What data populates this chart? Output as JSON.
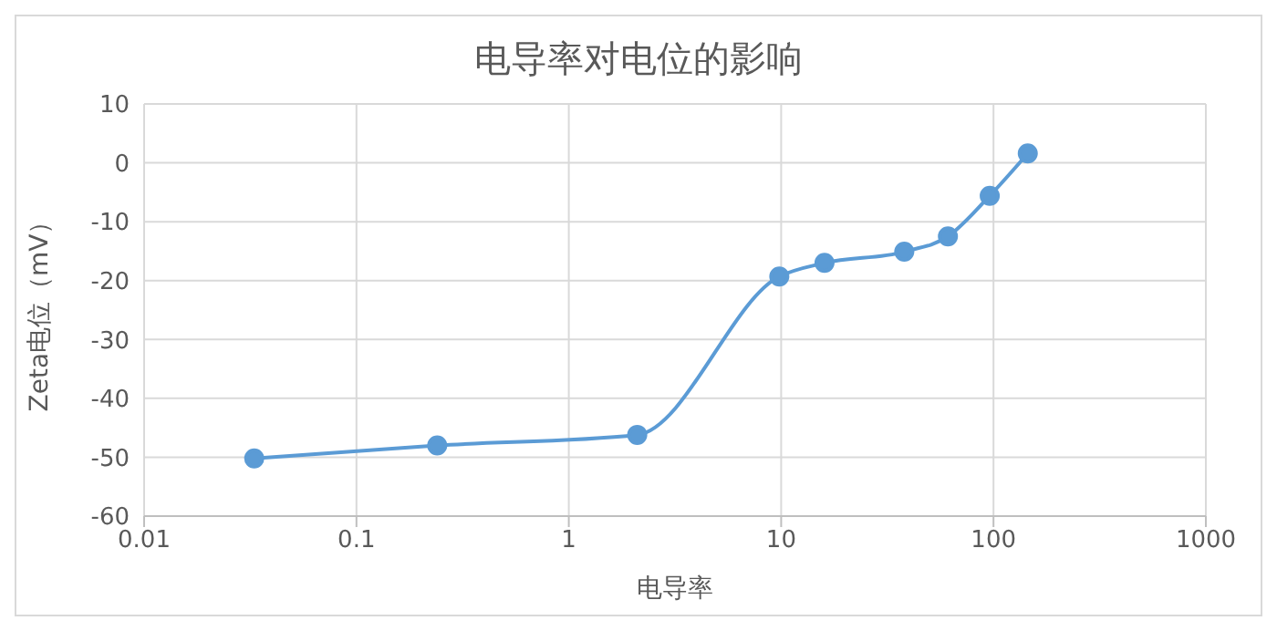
{
  "chart_data": {
    "type": "line",
    "title": "电导率对电位的影响",
    "xlabel": "电导率",
    "ylabel": "Zeta电位（mV）",
    "log": "x",
    "grid": true,
    "marker": "circle",
    "xlim": [
      0.01,
      1000
    ],
    "xticks": [
      0.01,
      0.1,
      1,
      10,
      100,
      1000
    ],
    "ylim": [
      -60,
      10
    ],
    "yticks": [
      -60,
      -50,
      -40,
      -30,
      -20,
      -10,
      0,
      10
    ],
    "series": [
      {
        "color": "#5b9bd5",
        "x": [
          0.033,
          0.24,
          2.1,
          9.8,
          16,
          38,
          61,
          96,
          145
        ],
        "values": [
          -50.2,
          -48,
          -46.2,
          -19.3,
          -17,
          -15.1,
          -12.5,
          -5.6,
          1.6
        ]
      }
    ]
  }
}
